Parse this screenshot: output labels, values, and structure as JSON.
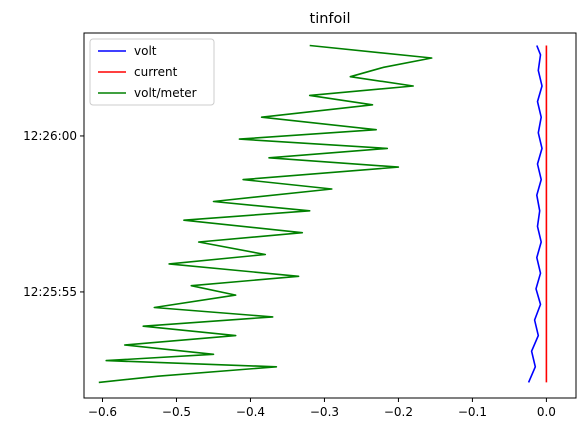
{
  "chart_data": {
    "type": "line",
    "title": "tinfoil",
    "xlabel": "",
    "ylabel": "",
    "xlim": [
      -0.625,
      0.04
    ],
    "x_ticks": [
      -0.6,
      -0.5,
      -0.4,
      -0.3,
      -0.2,
      -0.1,
      0.0
    ],
    "x_tick_labels": [
      "−0.6",
      "−0.5",
      "−0.4",
      "−0.3",
      "−0.2",
      "−0.1",
      "0.0"
    ],
    "y_axis": "time",
    "ylim": [
      "12:25:51.6",
      "12:26:03.3"
    ],
    "y_ticks": [
      "12:25:55",
      "12:26:00"
    ],
    "y_tick_labels": [
      "12:25:55",
      "12:26:00"
    ],
    "grid": false,
    "legend": {
      "position": "top-left"
    },
    "series": [
      {
        "name": "volt",
        "color": "#0000ff",
        "t": [
          "12:25:52.1",
          "12:25:52.6",
          "12:25:53.1",
          "12:25:53.6",
          "12:25:54.1",
          "12:25:54.6",
          "12:25:55.1",
          "12:25:55.6",
          "12:25:56.1",
          "12:25:56.6",
          "12:25:57.1",
          "12:25:57.6",
          "12:25:58.1",
          "12:25:58.6",
          "12:25:59.1",
          "12:25:59.6",
          "12:26:00.1",
          "12:26:00.6",
          "12:26:01.1",
          "12:26:01.6",
          "12:26:02.1",
          "12:26:02.6",
          "12:26:02.9"
        ],
        "values": [
          -0.024,
          -0.015,
          -0.02,
          -0.011,
          -0.016,
          -0.008,
          -0.014,
          -0.008,
          -0.013,
          -0.007,
          -0.012,
          -0.009,
          -0.013,
          -0.007,
          -0.012,
          -0.006,
          -0.011,
          -0.007,
          -0.012,
          -0.006,
          -0.011,
          -0.008,
          -0.013
        ]
      },
      {
        "name": "current",
        "color": "#ff0000",
        "t": [
          "12:25:52.1",
          "12:26:02.9"
        ],
        "values": [
          0.0,
          0.0
        ]
      },
      {
        "name": "volt/meter",
        "color": "#008000",
        "t": [
          "12:25:52.1",
          "12:25:52.3",
          "12:25:52.6",
          "12:25:52.8",
          "12:25:53.0",
          "12:25:53.3",
          "12:25:53.6",
          "12:25:53.9",
          "12:25:54.2",
          "12:25:54.5",
          "12:25:54.9",
          "12:25:55.2",
          "12:25:55.5",
          "12:25:55.9",
          "12:25:56.2",
          "12:25:56.6",
          "12:25:56.9",
          "12:25:57.3",
          "12:25:57.6",
          "12:25:57.9",
          "12:25:58.3",
          "12:25:58.6",
          "12:25:59.0",
          "12:25:59.3",
          "12:25:59.6",
          "12:25:59.9",
          "12:26:00.2",
          "12:26:00.6",
          "12:26:01.0",
          "12:26:01.3",
          "12:26:01.6",
          "12:26:01.9",
          "12:26:02.2",
          "12:26:02.5",
          "12:26:02.9"
        ],
        "values": [
          -0.605,
          -0.525,
          -0.365,
          -0.595,
          -0.45,
          -0.57,
          -0.42,
          -0.545,
          -0.37,
          -0.53,
          -0.42,
          -0.48,
          -0.335,
          -0.51,
          -0.38,
          -0.47,
          -0.33,
          -0.49,
          -0.32,
          -0.45,
          -0.29,
          -0.41,
          -0.2,
          -0.375,
          -0.215,
          -0.415,
          -0.23,
          -0.385,
          -0.235,
          -0.32,
          -0.18,
          -0.265,
          -0.22,
          -0.155,
          -0.32
        ]
      }
    ]
  }
}
